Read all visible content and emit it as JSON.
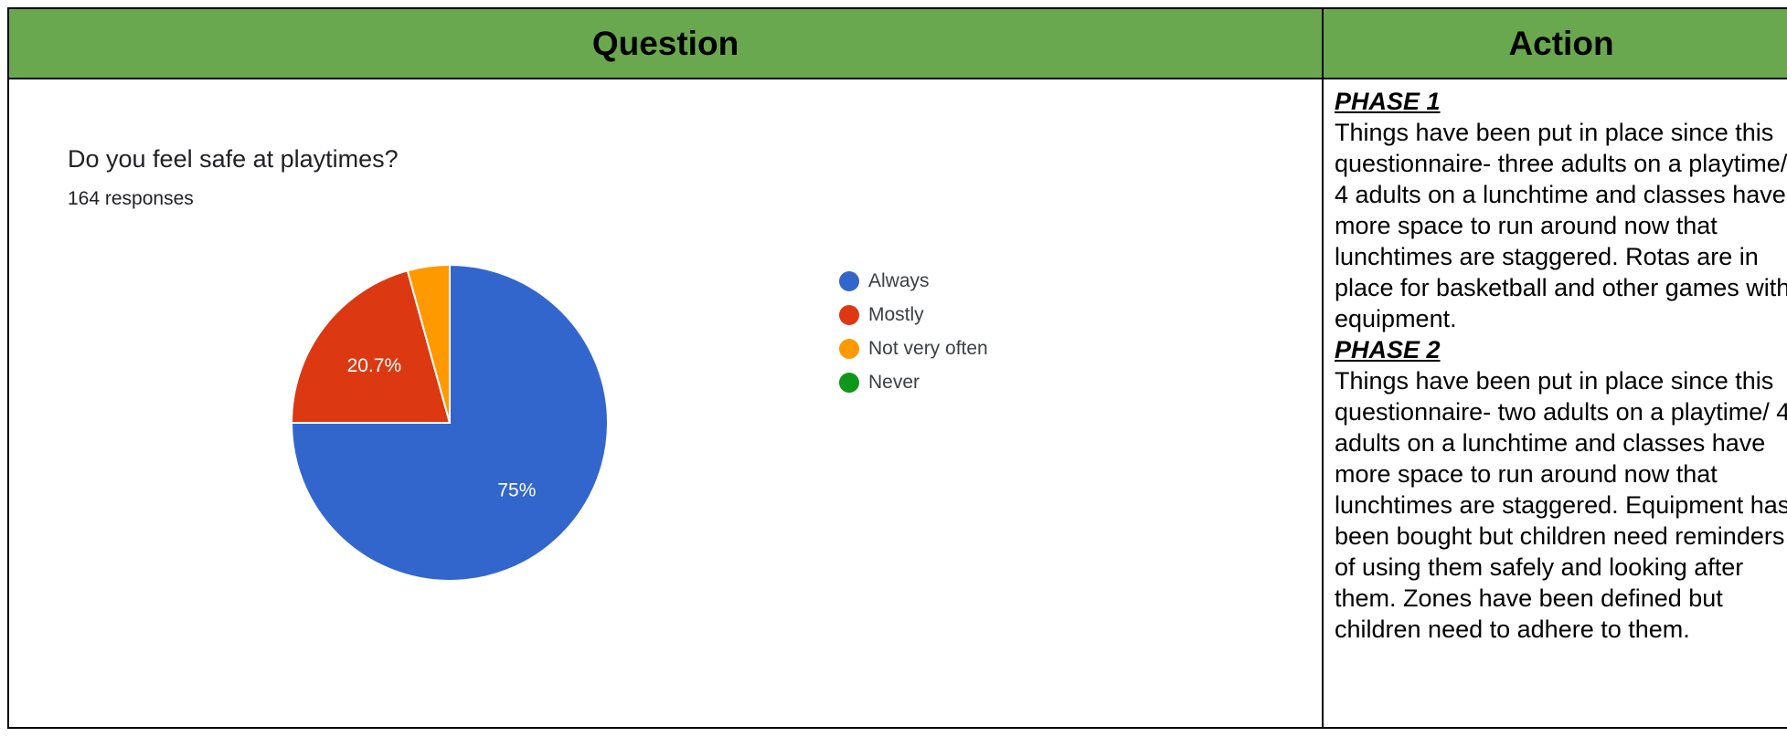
{
  "table": {
    "headers": {
      "question": "Question",
      "action": "Action"
    }
  },
  "question": {
    "title": "Do you feel safe at playtimes?",
    "responses": "164 responses"
  },
  "chart_data": {
    "type": "pie",
    "title": "Do you feel safe at playtimes?",
    "subtitle": "164 responses",
    "legend_position": "right",
    "slices": [
      {
        "label": "Always",
        "value": 75,
        "color": "#3366cc",
        "data_label": "75%"
      },
      {
        "label": "Mostly",
        "value": 20.7,
        "color": "#dc3912",
        "data_label": "20.7%"
      },
      {
        "label": "Not very often",
        "value": 4.3,
        "color": "#ff9900",
        "data_label": ""
      },
      {
        "label": "Never",
        "value": 0,
        "color": "#109618",
        "data_label": ""
      }
    ]
  },
  "action": {
    "phase1_heading": "PHASE 1",
    "phase1_text": "Things have been put in place since this questionnaire- three adults on a playtime/ 4 adults on a lunchtime and classes have more space to run around now that lunchtimes are staggered.  Rotas are in place for basketball and other games with equipment.",
    "phase2_heading": "PHASE 2",
    "phase2_text": "Things have been put in place since this questionnaire- two adults on a playtime/ 4 adults on a lunchtime and classes have more space to run around now that lunchtimes are staggered.  Equipment has been bought but children need reminders of using them safely and looking after them. Zones have been defined but children need to adhere to them."
  }
}
